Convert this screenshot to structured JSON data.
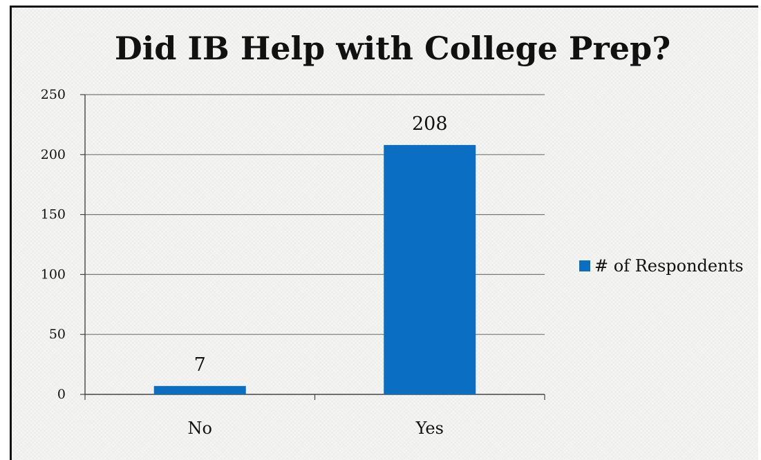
{
  "chart_data": {
    "type": "bar",
    "title": "Did IB Help with College Prep?",
    "categories": [
      "No",
      "Yes"
    ],
    "series": [
      {
        "name": "# of Respondents",
        "values": [
          7,
          208
        ],
        "color": "#0a6fc2"
      }
    ],
    "data_labels": [
      "7",
      "208"
    ],
    "ylim": [
      0,
      250
    ],
    "yticks": [
      0,
      50,
      100,
      150,
      200,
      250
    ],
    "grid": true,
    "legend_position": "right"
  },
  "colors": {
    "bar": "#0a6fc2",
    "axis": "#444444",
    "grid": "#777777",
    "text": "#111111"
  }
}
